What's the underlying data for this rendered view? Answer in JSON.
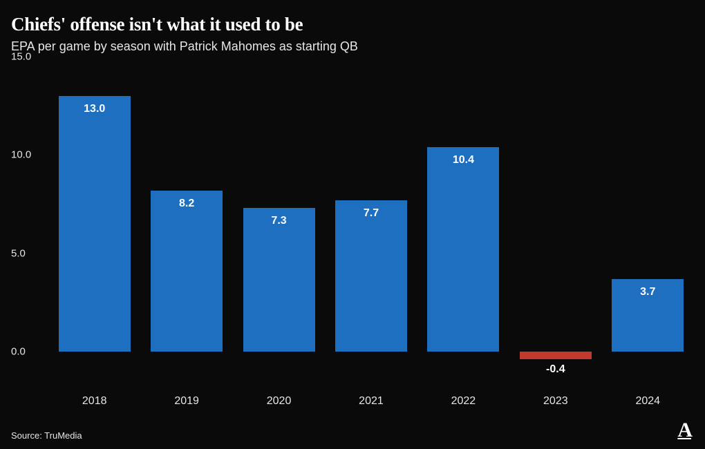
{
  "title": "Chiefs' offense isn't what it used to be",
  "subtitle": "EPA per game by season with Patrick Mahomes as starting QB",
  "source": "Source: TruMedia",
  "logo": "A",
  "chart": {
    "type": "bar",
    "background_color": "#0a0a0a",
    "positive_color": "#1f6fc1",
    "negative_color": "#c0392b",
    "text_color": "#ffffff",
    "axis_text_color": "#e6e6e6",
    "title_fontsize": 27,
    "subtitle_fontsize": 18,
    "label_fontsize": 16,
    "tick_fontsize": 15,
    "ylim_min": -2.0,
    "ylim_max": 15.0,
    "y_ticks": [
      0.0,
      5.0,
      10.0,
      15.0
    ],
    "y_tick_labels": [
      "0.0",
      "5.0",
      "10.0",
      "15.0"
    ],
    "bar_width_ratio": 0.78,
    "categories": [
      "2018",
      "2019",
      "2020",
      "2021",
      "2022",
      "2023",
      "2024"
    ],
    "values": [
      13.0,
      8.2,
      7.3,
      7.7,
      10.4,
      -0.4,
      3.7
    ],
    "value_labels": [
      "13.0",
      "8.2",
      "7.3",
      "7.7",
      "10.4",
      "-0.4",
      "3.7"
    ]
  }
}
